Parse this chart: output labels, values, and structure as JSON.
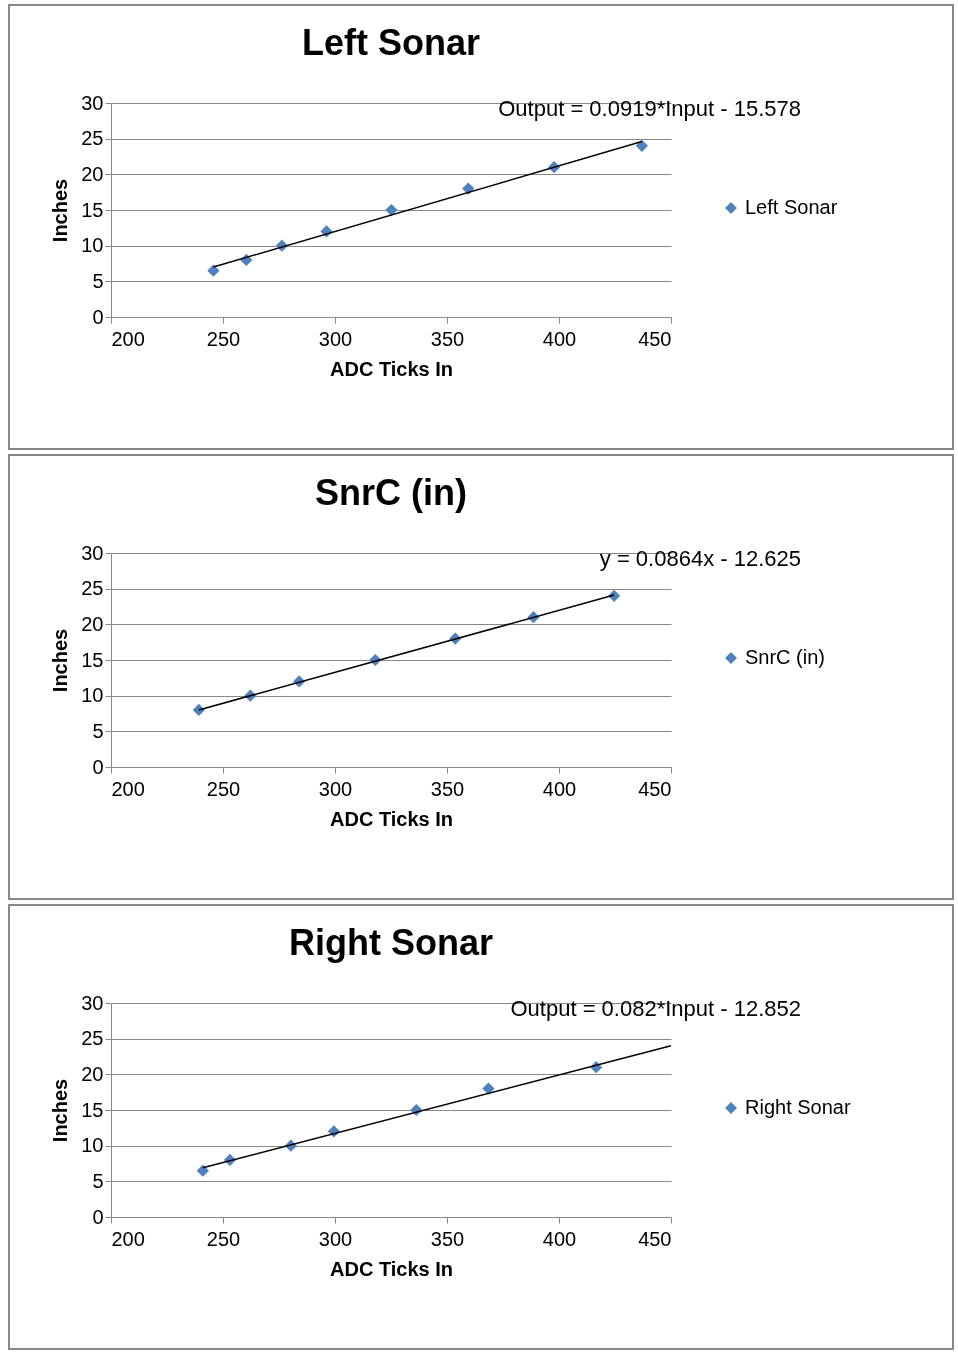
{
  "chart_data": [
    {
      "type": "scatter",
      "title": "Left Sonar",
      "xlabel": "ADC Ticks In",
      "ylabel": "Inches",
      "xlim": [
        200,
        450
      ],
      "xticks": [
        200,
        250,
        300,
        350,
        400,
        450
      ],
      "ylim": [
        0,
        30
      ],
      "yticks": [
        0,
        5,
        10,
        15,
        20,
        25,
        30
      ],
      "grid": "y",
      "legend": "right",
      "annotations": [
        "Output  = 0.0919*Input  - 15.578"
      ],
      "x": [
        245.7,
        260.4,
        276.3,
        296.2,
        325.2,
        359.5,
        397.8,
        437
      ],
      "series": [
        {
          "name": "Left Sonar",
          "color": "#4f81bd",
          "marker": "diamond",
          "values": [
            6.5,
            8,
            10,
            12,
            15,
            18,
            21,
            24
          ]
        },
        {
          "type": "line",
          "color": "#000000",
          "marker": "none",
          "x": [
            245.7,
            437
          ],
          "values": [
            7.0,
            24.6
          ]
        }
      ]
    },
    {
      "type": "scatter",
      "title": "SnrC (in)",
      "xlabel": "ADC Ticks In",
      "ylabel": "Inches",
      "xlim": [
        200,
        450
      ],
      "xticks": [
        200,
        250,
        300,
        350,
        400,
        450
      ],
      "ylim": [
        0,
        30
      ],
      "yticks": [
        0,
        5,
        10,
        15,
        20,
        25,
        30
      ],
      "grid": "y",
      "legend": "right",
      "annotations": [
        "y = 0.0864x - 12.625"
      ],
      "x": [
        239.2,
        262.2,
        284,
        318,
        353.7,
        388.6,
        424.6
      ],
      "series": [
        {
          "name": "SnrC (in)",
          "color": "#4f81bd",
          "marker": "diamond",
          "values": [
            8,
            10,
            12,
            15,
            18,
            21,
            24
          ]
        },
        {
          "type": "line",
          "color": "#000000",
          "marker": "none",
          "x": [
            239.2,
            424.6
          ],
          "values": [
            8.0,
            24.1
          ]
        }
      ]
    },
    {
      "type": "scatter",
      "title": "Right Sonar",
      "xlabel": "ADC Ticks In",
      "ylabel": "Inches",
      "xlim": [
        200,
        450
      ],
      "xticks": [
        200,
        250,
        300,
        350,
        400,
        450
      ],
      "ylim": [
        0,
        30
      ],
      "yticks": [
        0,
        5,
        10,
        15,
        20,
        25,
        30
      ],
      "grid": "y",
      "legend": "right",
      "annotations": [
        "Output = 0.082*Input - 12.852"
      ],
      "x": [
        241,
        253.1,
        280.3,
        299.5,
        336.3,
        368.5,
        416.6
      ],
      "series": [
        {
          "name": "Right Sonar",
          "color": "#4f81bd",
          "marker": "diamond",
          "values": [
            6.5,
            8,
            10,
            12,
            15,
            18,
            21
          ]
        },
        {
          "type": "line",
          "color": "#000000",
          "marker": "none",
          "x": [
            241,
            450
          ],
          "values": [
            6.9,
            24.0
          ]
        }
      ]
    }
  ]
}
